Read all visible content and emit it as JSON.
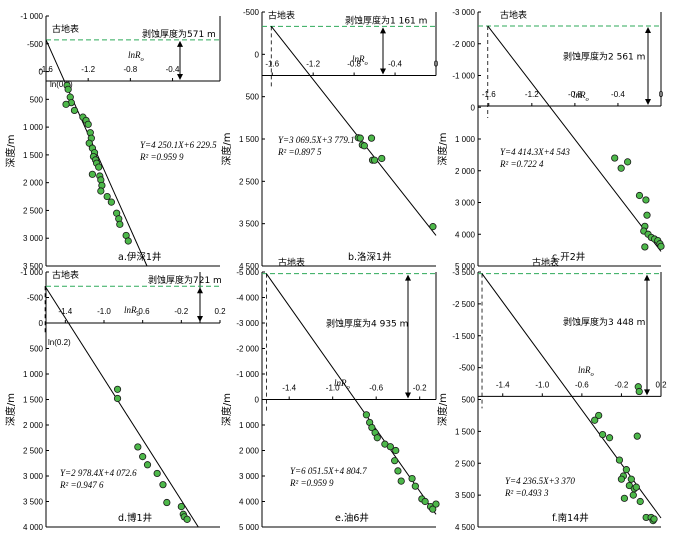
{
  "chart_data": [
    {
      "type": "scatter",
      "caption": "a.伊深1井",
      "ylabel": "深度/m",
      "xaxis_label": "lnR",
      "xaxis_sub": "o",
      "xticks": [
        "-1.6",
        "-1.2",
        "-0.8",
        "-0.4"
      ],
      "yticks": [
        "-1 000",
        "-500",
        "0",
        "500",
        "1 000",
        "1 500",
        "2 000",
        "2 500",
        "3 000",
        "3 500"
      ],
      "ylim": [
        -1000,
        3500
      ],
      "surface_label": "古地表",
      "erosion_label": "剥蚀厚度为571 m",
      "extra_label": "ln(0.2)",
      "equation": "Y=4 250.1X+6 229.5",
      "r2_label": "R² =0.959 9",
      "surface_depth": -571,
      "fit": {
        "slope": 4250.1,
        "intercept": 6229.5
      },
      "points": [
        [
          -1.4,
          250
        ],
        [
          -1.39,
          320
        ],
        [
          -1.37,
          460
        ],
        [
          -1.36,
          560
        ],
        [
          -1.41,
          590
        ],
        [
          -1.33,
          700
        ],
        [
          -1.25,
          820
        ],
        [
          -1.22,
          880
        ],
        [
          -1.2,
          950
        ],
        [
          -1.18,
          1100
        ],
        [
          -1.17,
          1200
        ],
        [
          -1.19,
          1290
        ],
        [
          -1.16,
          1380
        ],
        [
          -1.14,
          1460
        ],
        [
          -1.15,
          1530
        ],
        [
          -1.13,
          1590
        ],
        [
          -1.12,
          1650
        ],
        [
          -1.1,
          1720
        ],
        [
          -1.16,
          1850
        ],
        [
          -1.09,
          1880
        ],
        [
          -1.08,
          1950
        ],
        [
          -1.07,
          2050
        ],
        [
          -1.08,
          2150
        ],
        [
          -1.02,
          2250
        ],
        [
          -0.98,
          2350
        ],
        [
          -0.93,
          2550
        ],
        [
          -0.91,
          2650
        ],
        [
          -0.9,
          2750
        ],
        [
          -0.84,
          2950
        ],
        [
          -0.82,
          3050
        ]
      ]
    },
    {
      "type": "scatter",
      "caption": "b.洛深1井",
      "ylabel": "深度/m",
      "xaxis_label": "lnR",
      "xaxis_sub": "o",
      "xticks": [
        "-1.6",
        "-1.2",
        "-0.8",
        "-0.4",
        "0"
      ],
      "yticks": [
        "-500",
        "0",
        "500",
        "1 500",
        "2 500",
        "3 500",
        "4 500"
      ],
      "ylim": [
        -1500,
        4500
      ],
      "surface_label": "古地表",
      "erosion_label": "剥蚀厚度为1 161 m",
      "extra_label": "",
      "equation": "Y=3 069.5X+3 779.1",
      "r2_label": "R² =0.897 5",
      "surface_depth": -1161,
      "fit": {
        "slope": 3069.5,
        "intercept": 3779.1
      },
      "points": [
        [
          -0.76,
          1470
        ],
        [
          -0.74,
          1480
        ],
        [
          -0.72,
          1640
        ],
        [
          -0.7,
          1660
        ],
        [
          -0.63,
          1480
        ],
        [
          -0.62,
          2000
        ],
        [
          -0.6,
          2000
        ],
        [
          -0.53,
          1960
        ],
        [
          -0.03,
          3570
        ]
      ]
    },
    {
      "type": "scatter",
      "caption": "c.开2井",
      "ylabel": "深度/m",
      "xaxis_label": "lnR",
      "xaxis_sub": "o",
      "xticks": [
        "-1.6",
        "-1.2",
        "-0.8",
        "-0.4",
        "0"
      ],
      "yticks": [
        "-3 000",
        "-2 000",
        "-1 000",
        "0",
        "1 000",
        "2 000",
        "3 000",
        "4 000",
        "5 000"
      ],
      "ylim": [
        -3000,
        5000
      ],
      "surface_label": "古地表",
      "erosion_label": "剥蚀厚度为2 561 m",
      "extra_label": "",
      "equation": "Y=4 414.3X+4 543",
      "r2_label": "R² =0.722 4",
      "surface_depth": -2561,
      "fit": {
        "slope": 4414.3,
        "intercept": 4543
      },
      "points": [
        [
          -0.43,
          1600
        ],
        [
          -0.37,
          1920
        ],
        [
          -0.31,
          1720
        ],
        [
          -0.2,
          2780
        ],
        [
          -0.14,
          2920
        ],
        [
          -0.13,
          3400
        ],
        [
          -0.15,
          3750
        ],
        [
          -0.16,
          3900
        ],
        [
          -0.12,
          4000
        ],
        [
          -0.09,
          4100
        ],
        [
          -0.06,
          4150
        ],
        [
          -0.03,
          4200
        ],
        [
          -0.01,
          4300
        ],
        [
          -0.15,
          4400
        ],
        [
          0.0,
          4380
        ]
      ]
    },
    {
      "type": "scatter",
      "caption": "d.博1井",
      "ylabel": "深度/m",
      "xaxis_label": "lnR",
      "xaxis_sub": "o",
      "xticks": [
        "-1.4",
        "-1.0",
        "-0.6",
        "-0.2",
        "0.2"
      ],
      "yticks": [
        "-1 000",
        "-500",
        "0",
        "500",
        "1 000",
        "1 500",
        "2 000",
        "2 500",
        "3 000",
        "3 500",
        "4 000"
      ],
      "ylim": [
        -1000,
        4000
      ],
      "surface_label": "古地表",
      "erosion_label": "剥蚀厚度为721 m",
      "extra_label": "ln(0.2)",
      "equation": "Y=2 978.4X+4 072.6",
      "r2_label": "R² =0.947 6",
      "surface_depth": -721,
      "fit": {
        "slope": 2978.4,
        "intercept": 4072.6
      },
      "points": [
        [
          -0.86,
          1300
        ],
        [
          -0.86,
          1480
        ],
        [
          -0.65,
          2430
        ],
        [
          -0.6,
          2620
        ],
        [
          -0.55,
          2780
        ],
        [
          -0.45,
          2950
        ],
        [
          -0.39,
          3170
        ],
        [
          -0.35,
          3520
        ],
        [
          -0.2,
          3600
        ],
        [
          -0.18,
          3750
        ],
        [
          -0.17,
          3800
        ],
        [
          -0.14,
          3850
        ]
      ]
    },
    {
      "type": "scatter",
      "caption": "e.油6井",
      "ylabel": "深度/m",
      "xaxis_label": "lnR",
      "xaxis_sub": "o",
      "xticks": [
        "-1.4",
        "-1.0",
        "-0.6",
        "-0.2"
      ],
      "yticks": [
        "-5 000",
        "-4 000",
        "-3 000",
        "-2 000",
        "-1 000",
        "0",
        "1 000",
        "2 000",
        "3 000",
        "4 000",
        "5 000"
      ],
      "ylim": [
        -5000,
        5000
      ],
      "surface_label": "古地表",
      "erosion_label": "剥蚀厚度为4 935 m",
      "extra_label": "",
      "equation": "Y=6 051.5X+4 804.7",
      "r2_label": "R² =0.959 9",
      "surface_depth": -4935,
      "fit": {
        "slope": 6051.5,
        "intercept": 4804.7
      },
      "points": [
        [
          -0.69,
          600
        ],
        [
          -0.66,
          900
        ],
        [
          -0.64,
          1100
        ],
        [
          -0.61,
          1300
        ],
        [
          -0.59,
          1500
        ],
        [
          -0.52,
          1750
        ],
        [
          -0.47,
          1850
        ],
        [
          -0.42,
          2000
        ],
        [
          -0.43,
          2400
        ],
        [
          -0.4,
          2800
        ],
        [
          -0.37,
          3200
        ],
        [
          -0.27,
          3100
        ],
        [
          -0.24,
          3400
        ],
        [
          -0.18,
          3900
        ],
        [
          -0.15,
          4000
        ],
        [
          -0.1,
          4200
        ],
        [
          -0.08,
          4300
        ],
        [
          -0.05,
          4100
        ]
      ]
    },
    {
      "type": "scatter",
      "caption": "f.南14井",
      "ylabel": "深度/m",
      "xaxis_label": "lnR",
      "xaxis_sub": "o",
      "xticks": [
        "-1.4",
        "-1.0",
        "-0.6",
        "-0.2",
        "0.2"
      ],
      "yticks": [
        "-3 500",
        "-2 500",
        "-1 500",
        "-500",
        "500",
        "1 500",
        "2 500",
        "3 500",
        "4 500"
      ],
      "ylim": [
        -3500,
        4500
      ],
      "surface_label": "古地表",
      "erosion_label": "剥蚀厚度为3 448 m",
      "extra_label": "",
      "equation": "Y=4 236.5X+3 370",
      "r2_label": "R² =0.493 3",
      "surface_depth": -3448,
      "fit": {
        "slope": 4236.5,
        "intercept": 3370
      },
      "points": [
        [
          -0.03,
          100
        ],
        [
          -0.02,
          250
        ],
        [
          -0.43,
          1000
        ],
        [
          -0.47,
          1150
        ],
        [
          -0.39,
          1600
        ],
        [
          -0.32,
          1700
        ],
        [
          -0.04,
          1650
        ],
        [
          -0.22,
          2400
        ],
        [
          -0.15,
          2700
        ],
        [
          -0.18,
          2900
        ],
        [
          -0.2,
          3000
        ],
        [
          -0.12,
          3200
        ],
        [
          -0.1,
          3000
        ],
        [
          -0.07,
          3300
        ],
        [
          -0.05,
          3250
        ],
        [
          -0.08,
          3500
        ],
        [
          -0.17,
          3600
        ],
        [
          -0.01,
          3700
        ],
        [
          0.05,
          4200
        ],
        [
          0.1,
          4200
        ],
        [
          0.12,
          4300
        ],
        [
          0.13,
          4250
        ]
      ]
    }
  ]
}
